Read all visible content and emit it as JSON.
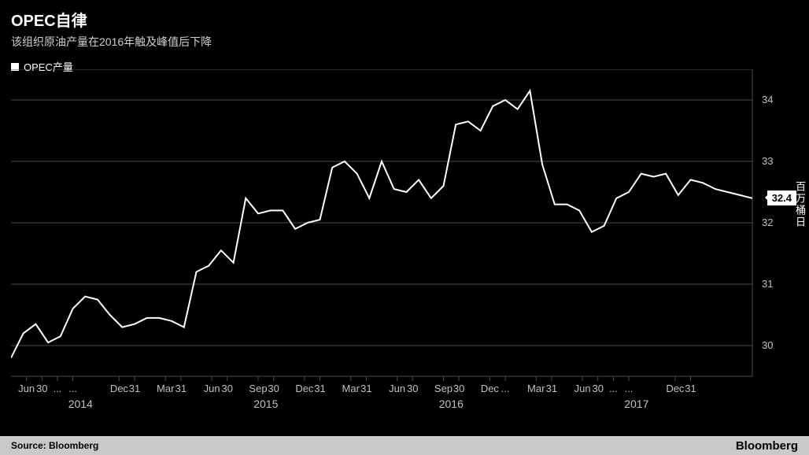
{
  "title": "OPEC自律",
  "subtitle": "该组织原油产量在2016年触及峰值后下降",
  "legend_label": "OPEC产量",
  "source_label": "Source: Bloomberg",
  "brand": "Bloomberg",
  "y_axis_title": "百万桶日",
  "chart": {
    "type": "line",
    "background_color": "#000000",
    "line_color": "#ffffff",
    "line_width": 2,
    "grid_color": "#4a4a4a",
    "axis_text_color": "#c0c0c0",
    "ylim": [
      29.5,
      34.5
    ],
    "yticks": [
      30,
      31,
      32,
      33,
      34
    ],
    "label_fontsize": 13,
    "last_value_label": "32.4",
    "values": [
      29.8,
      30.2,
      30.35,
      30.05,
      30.15,
      30.6,
      30.8,
      30.75,
      30.5,
      30.3,
      30.35,
      30.45,
      30.45,
      30.4,
      30.3,
      31.2,
      31.3,
      31.55,
      31.35,
      32.4,
      32.15,
      32.2,
      32.2,
      31.9,
      32.0,
      32.05,
      32.9,
      33.0,
      32.8,
      32.4,
      33.0,
      32.55,
      32.5,
      32.7,
      32.4,
      32.6,
      33.6,
      33.65,
      33.5,
      33.9,
      34.0,
      33.85,
      34.15,
      32.95,
      32.3,
      32.3,
      32.2,
      31.85,
      31.95,
      32.4,
      32.5,
      32.8,
      32.75,
      32.8,
      32.45,
      32.7,
      32.65,
      32.55,
      32.5,
      32.45,
      32.4
    ],
    "x_minor_ticks": {
      "labels": [
        "Jun",
        "30",
        "...",
        "...",
        "Dec",
        "31",
        "Mar",
        "31",
        "Jun",
        "30",
        "Sep",
        "30",
        "Dec",
        "31",
        "Mar",
        "31",
        "Jun",
        "30",
        "Sep",
        "30",
        "Dec",
        "...",
        "Mar",
        "31",
        "Jun",
        "30",
        "...",
        "...",
        "Dec",
        "31"
      ],
      "positions": [
        1,
        2,
        3,
        4,
        7,
        8,
        10,
        11,
        13,
        14,
        16,
        17,
        19,
        20,
        22,
        23,
        25,
        26,
        28,
        29,
        31,
        32,
        34,
        35,
        37,
        38,
        39,
        40,
        43,
        44
      ]
    },
    "x_major_ticks": {
      "labels": [
        "2014",
        "2015",
        "2016",
        "2017"
      ],
      "positions": [
        4.5,
        16.5,
        28.5,
        40.5
      ]
    },
    "n_slots": 48
  }
}
